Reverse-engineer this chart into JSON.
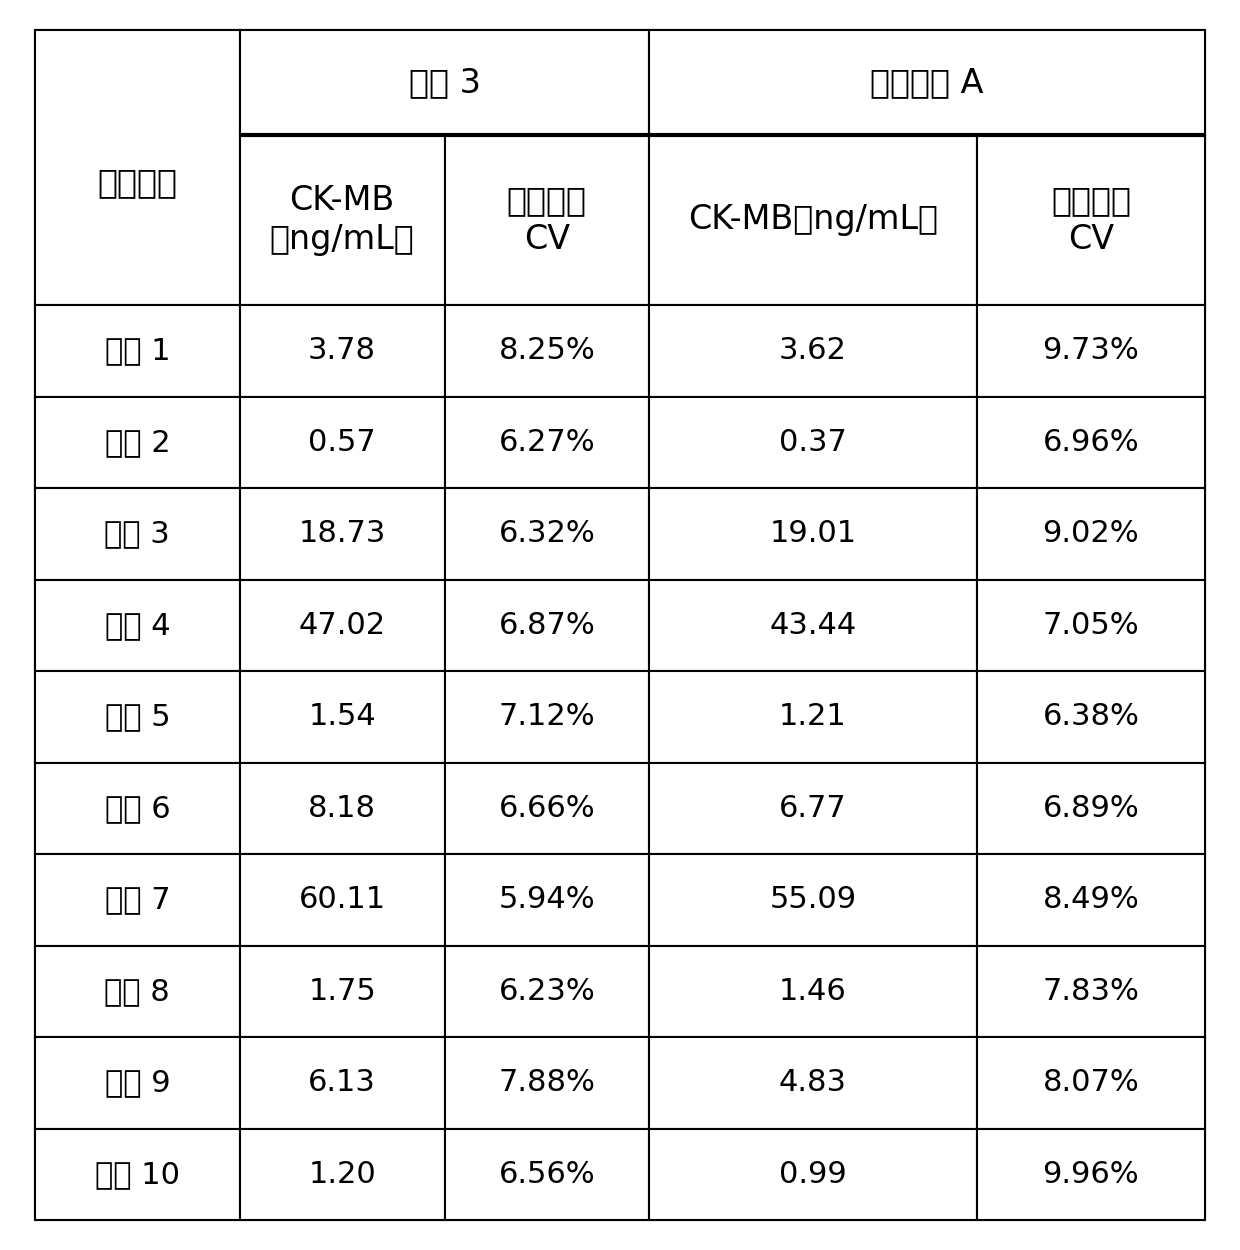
{
  "col0_header": "检测结果",
  "fangan3_header": "方案 3",
  "duizhao_header": "对照方案 A",
  "subheader_col1": "CK-MB\n（ng/mL）",
  "subheader_col2": "变异系数\nCV",
  "subheader_col3": "CK-MB（ng/mL）",
  "subheader_col4": "变异系数\nCV",
  "rows": [
    [
      "样本 1",
      "3.78",
      "8.25%",
      "3.62",
      "9.73%"
    ],
    [
      "样本 2",
      "0.57",
      "6.27%",
      "0.37",
      "6.96%"
    ],
    [
      "样本 3",
      "18.73",
      "6.32%",
      "19.01",
      "9.02%"
    ],
    [
      "样本 4",
      "47.02",
      "6.87%",
      "43.44",
      "7.05%"
    ],
    [
      "样本 5",
      "1.54",
      "7.12%",
      "1.21",
      "6.38%"
    ],
    [
      "样本 6",
      "8.18",
      "6.66%",
      "6.77",
      "6.89%"
    ],
    [
      "样本 7",
      "60.11",
      "5.94%",
      "55.09",
      "8.49%"
    ],
    [
      "样本 8",
      "1.75",
      "6.23%",
      "1.46",
      "7.83%"
    ],
    [
      "样本 9",
      "6.13",
      "7.88%",
      "4.83",
      "8.07%"
    ],
    [
      "样本 10",
      "1.20",
      "6.56%",
      "0.99",
      "9.96%"
    ]
  ],
  "background_color": "#ffffff",
  "line_color": "#000000",
  "text_color": "#000000",
  "font_size": 22,
  "header_font_size": 24,
  "fig_width": 12.4,
  "fig_height": 12.5,
  "dpi": 100
}
